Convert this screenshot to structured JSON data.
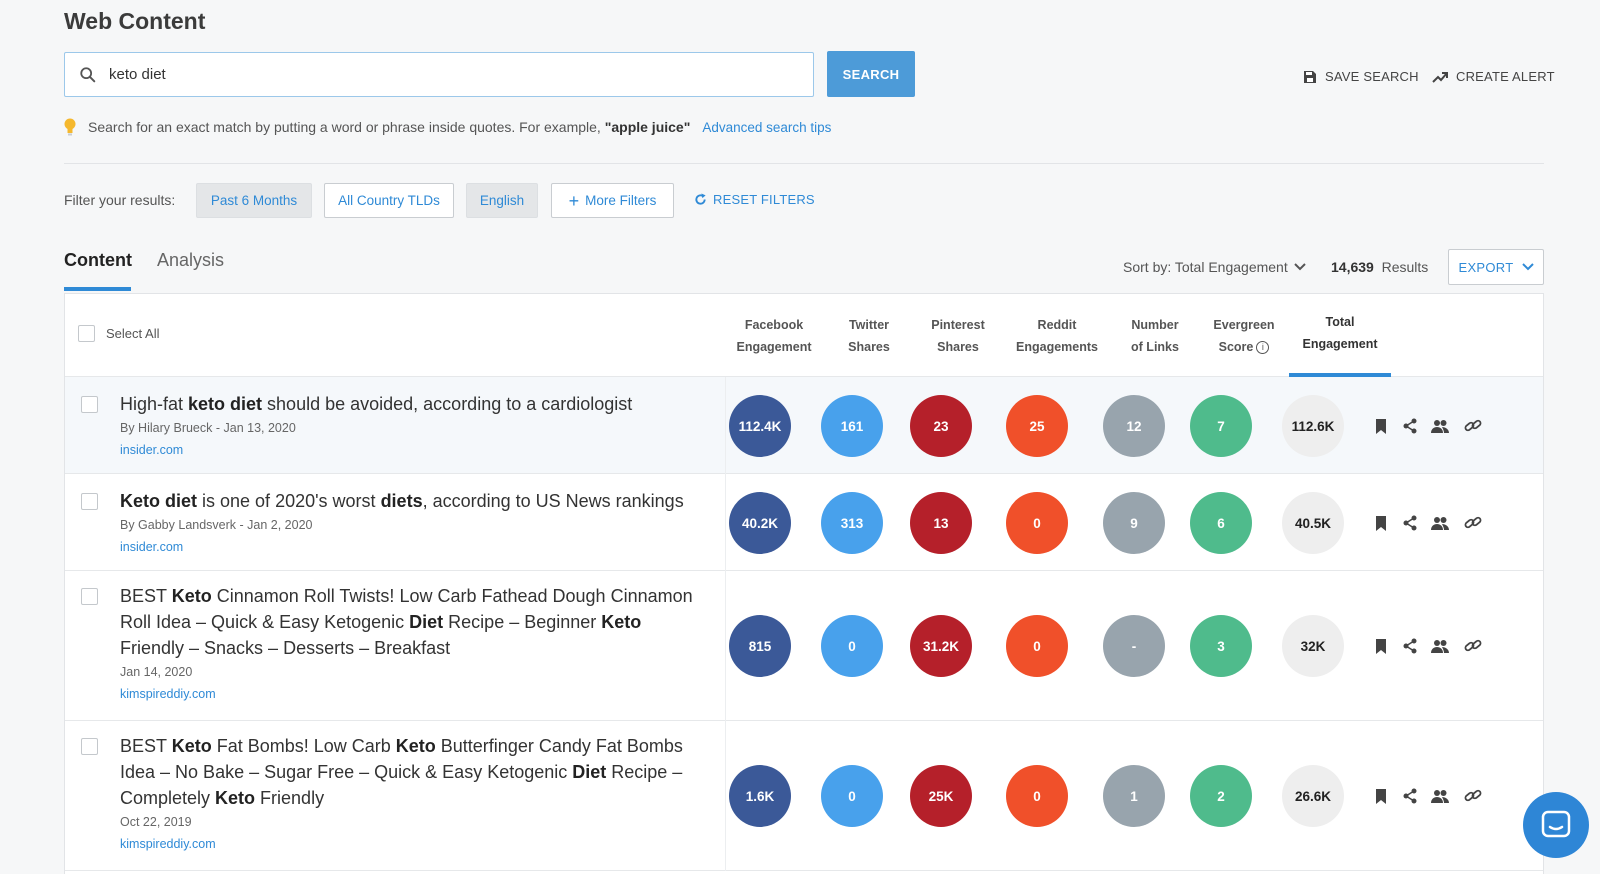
{
  "page": {
    "title": "Web Content"
  },
  "search": {
    "value": "keto diet",
    "button_label": "SEARCH"
  },
  "actions": {
    "save_search": "SAVE SEARCH",
    "create_alert": "CREATE ALERT"
  },
  "tip": {
    "text": "Search for an exact match by putting a word or phrase inside quotes. For example,",
    "example": "\"apple juice\"",
    "link": "Advanced search tips"
  },
  "filters": {
    "label": "Filter your results:",
    "chips": [
      "Past 6 Months",
      "All Country TLDs",
      "English",
      "More Filters"
    ],
    "reset": "RESET FILTERS"
  },
  "tabs": {
    "content": "Content",
    "analysis": "Analysis"
  },
  "toolbar": {
    "sort": "Sort by: Total Engagement",
    "results_count": "14,639",
    "results_label": "Results",
    "export": "EXPORT"
  },
  "table": {
    "select_all": "Select All",
    "columns": [
      [
        "Facebook",
        "Engagement"
      ],
      [
        "Twitter",
        "Shares"
      ],
      [
        "Pinterest",
        "Shares"
      ],
      [
        "Reddit",
        "Engagements"
      ],
      [
        "Number",
        "of Links"
      ],
      [
        "Evergreen",
        "Score"
      ],
      [
        "Total",
        "Engagement"
      ]
    ],
    "rows": [
      {
        "title_parts": [
          [
            "High-fat ",
            false
          ],
          [
            "keto diet",
            true
          ],
          [
            " should be avoided, according to a cardiologist",
            false
          ]
        ],
        "byline": "By Hilary Brueck - Jan 13, 2020",
        "domain": "insider.com",
        "metrics": [
          "112.4K",
          "161",
          "23",
          "25",
          "12",
          "7",
          "112.6K"
        ]
      },
      {
        "title_parts": [
          [
            "Keto diet",
            true
          ],
          [
            " is one of 2020's worst ",
            false
          ],
          [
            "diets",
            true
          ],
          [
            ", according to US News rankings",
            false
          ]
        ],
        "byline": "By Gabby Landsverk - Jan 2, 2020",
        "domain": "insider.com",
        "metrics": [
          "40.2K",
          "313",
          "13",
          "0",
          "9",
          "6",
          "40.5K"
        ]
      },
      {
        "title_parts": [
          [
            "BEST ",
            false
          ],
          [
            "Keto",
            true
          ],
          [
            " Cinnamon Roll Twists! Low Carb Fathead Dough Cinnamon Roll Idea – Quick & Easy Ketogenic ",
            false
          ],
          [
            "Diet",
            true
          ],
          [
            " Recipe – Beginner ",
            false
          ],
          [
            "Keto",
            true
          ],
          [
            " Friendly – Snacks – Desserts – Breakfast",
            false
          ]
        ],
        "byline": "Jan 14, 2020",
        "domain": "kimspireddiy.com",
        "metrics": [
          "815",
          "0",
          "31.2K",
          "0",
          "-",
          "3",
          "32K"
        ]
      },
      {
        "title_parts": [
          [
            "BEST ",
            false
          ],
          [
            "Keto",
            true
          ],
          [
            " Fat Bombs! Low Carb ",
            false
          ],
          [
            "Keto",
            true
          ],
          [
            " Butterfinger Candy Fat Bombs Idea – No Bake – Sugar Free – Quick & Easy Ketogenic ",
            false
          ],
          [
            "Diet",
            true
          ],
          [
            " Recipe – Completely ",
            false
          ],
          [
            "Keto",
            true
          ],
          [
            " Friendly",
            false
          ]
        ],
        "byline": "Oct 22, 2019",
        "domain": "kimspireddiy.com",
        "metrics": [
          "1.6K",
          "0",
          "25K",
          "0",
          "1",
          "2",
          "26.6K"
        ]
      }
    ]
  },
  "colors": {
    "accent": "#2f8ad6",
    "facebook": "#3b5998",
    "twitter": "#48a1ec",
    "pinterest": "#b5202a",
    "reddit": "#f0502a",
    "links": "#98a4ad",
    "evergreen": "#4fbb8c",
    "total": "#eeeeee"
  },
  "icons": [
    "search-icon",
    "save-icon",
    "trending-up-icon",
    "lightbulb-icon",
    "refresh-icon",
    "chevron-down-icon",
    "info-icon",
    "bookmark-icon",
    "share-icon",
    "users-icon",
    "link-icon",
    "chat-icon"
  ]
}
